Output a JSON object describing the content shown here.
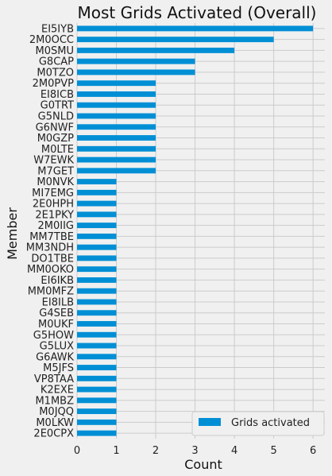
{
  "chart_data": {
    "type": "bar",
    "orientation": "horizontal",
    "title": "Most Grids Activated (Overall)",
    "xlabel": "Count",
    "ylabel": "Member",
    "xlim": [
      0,
      6.3
    ],
    "xticks": [
      0,
      1,
      2,
      3,
      4,
      5,
      6
    ],
    "grid": true,
    "legend_position": "bottom-right",
    "bar_color": "#008fd5",
    "series": [
      {
        "name": "Grids activated",
        "categories": [
          "EI5IYB",
          "2M0OCC",
          "M0SMU",
          "G8CAP",
          "M0TZO",
          "2M0PVP",
          "EI8ICB",
          "G0TRT",
          "G5NLD",
          "G6NWF",
          "M0GZP",
          "M0LTE",
          "W7EWK",
          "M7GET",
          "M0NVK",
          "MI7EMG",
          "2E0HPH",
          "2E1PKY",
          "2M0IIG",
          "MM7TBE",
          "MM3NDH",
          "DO1TBE",
          "MM0OKO",
          "EI6IKB",
          "MM0MFZ",
          "EI8ILB",
          "G4SEB",
          "M0UKF",
          "G5HOW",
          "G5LUX",
          "G6AWK",
          "M5JFS",
          "VP8TAA",
          "K2EXE",
          "M1MBZ",
          "M0JQQ",
          "M0LKW",
          "2E0CPX"
        ],
        "values": [
          6,
          5,
          4,
          3,
          3,
          2,
          2,
          2,
          2,
          2,
          2,
          2,
          2,
          2,
          1,
          1,
          1,
          1,
          1,
          1,
          1,
          1,
          1,
          1,
          1,
          1,
          1,
          1,
          1,
          1,
          1,
          1,
          1,
          1,
          1,
          1,
          1,
          1
        ]
      }
    ]
  }
}
